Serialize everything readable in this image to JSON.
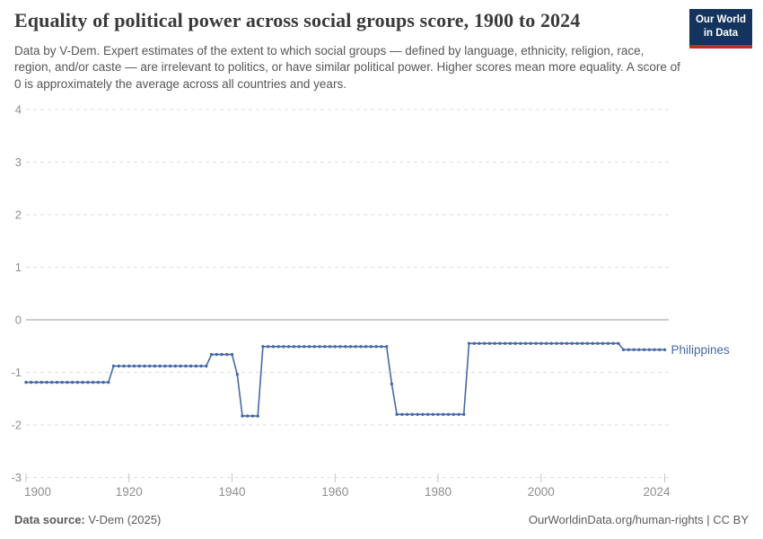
{
  "header": {
    "title": "Equality of political power across social groups score, 1900 to 2024",
    "subtitle": "Data by V-Dem. Expert estimates of the extent to which social groups — defined by language, ethnicity, religion, race, region, and/or caste — are irrelevant to politics, or have similar political power. Higher scores mean more equality. A score of 0 is approximately the average across all countries and years.",
    "logo": {
      "line1": "Our World",
      "line2": "in Data",
      "bg_color": "#14345e",
      "accent_color": "#c32b28"
    }
  },
  "chart_data": {
    "type": "line",
    "title": "Equality of political power across social groups score, 1900 to 2024",
    "xlabel": "",
    "ylabel": "",
    "xlim": [
      1900,
      2024
    ],
    "ylim": [
      -3,
      4
    ],
    "x_ticks": [
      1900,
      1920,
      1940,
      1960,
      1980,
      2000,
      2024
    ],
    "y_ticks": [
      4,
      3,
      2,
      1,
      0,
      -1,
      -2,
      -3
    ],
    "grid": "horizontal-dashed",
    "legend_position": "right-of-line-end",
    "colors": {
      "line": "#4569a4",
      "grid": "#dedede",
      "zero_line": "#999999",
      "tick_label": "#8f8f8f"
    },
    "series": [
      {
        "name": "Philippines",
        "color": "#4569a4",
        "segments": [
          {
            "from": 1900,
            "to": 1916,
            "value": -1.19
          },
          {
            "from": 1917,
            "to": 1935,
            "value": -0.88
          },
          {
            "from": 1936,
            "to": 1940,
            "value": -0.66
          },
          {
            "from": 1941,
            "to": 1941,
            "value": -1.04
          },
          {
            "from": 1942,
            "to": 1945,
            "value": -1.83
          },
          {
            "from": 1946,
            "to": 1970,
            "value": -0.51
          },
          {
            "from": 1971,
            "to": 1971,
            "value": -1.22
          },
          {
            "from": 1972,
            "to": 1985,
            "value": -1.8
          },
          {
            "from": 1986,
            "to": 2015,
            "value": -0.45
          },
          {
            "from": 2016,
            "to": 2024,
            "value": -0.57
          }
        ]
      }
    ]
  },
  "footer": {
    "source_label": "Data source:",
    "source_value": "V-Dem (2025)",
    "credit": "OurWorldinData.org/human-rights | CC BY"
  }
}
